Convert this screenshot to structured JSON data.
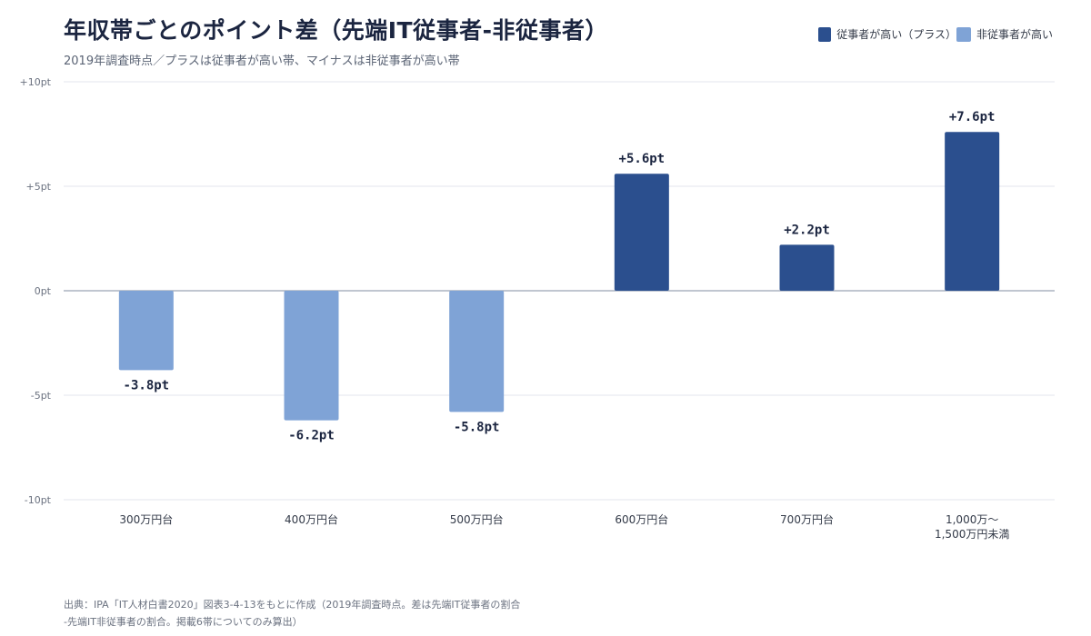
{
  "colors": {
    "positive": "#2b4f8e",
    "negative": "#7fa3d6",
    "grid": "#e3e6ec",
    "zero_line": "#9aa3b5"
  },
  "header": {
    "title": "年収帯ごとのポイント差（先端IT従事者-非従事者）",
    "subtitle": "2019年調査時点／プラスは従事者が高い帯、マイナスは非従事者が高い帯"
  },
  "legend": {
    "positive_label": "従事者が高い（プラス）",
    "negative_label": "非従事者が高い"
  },
  "footer": {
    "line1": "出典：IPA「IT人材白書2020」図表3-4-13をもとに作成（2019年調査時点。差は先端IT従事者の割合",
    "line2": "-先端IT非従事者の割合。掲載6帯についてのみ算出）"
  },
  "chart_data": {
    "type": "bar",
    "categories": [
      [
        "300万円台"
      ],
      [
        "400万円台"
      ],
      [
        "500万円台"
      ],
      [
        "600万円台"
      ],
      [
        "700万円台"
      ],
      [
        "1,000万～",
        "1,500万円未満"
      ]
    ],
    "values": [
      -3.8,
      -6.2,
      -5.8,
      5.6,
      2.2,
      7.6
    ],
    "value_labels": [
      "-3.8pt",
      "-6.2pt",
      "-5.8pt",
      "+5.6pt",
      "+2.2pt",
      "+7.6pt"
    ],
    "ylim": [
      -10,
      10
    ],
    "yticks": [
      10,
      5,
      0,
      -5,
      -10
    ],
    "ytick_labels": [
      "+10pt",
      "+5pt",
      "0pt",
      "-5pt",
      "-10pt"
    ],
    "grid": true,
    "legend_position": "top-right",
    "series": [
      {
        "name": "従事者が高い（プラス）",
        "color": "#2b4f8e"
      },
      {
        "name": "非従事者が高い",
        "color": "#7fa3d6"
      }
    ]
  }
}
